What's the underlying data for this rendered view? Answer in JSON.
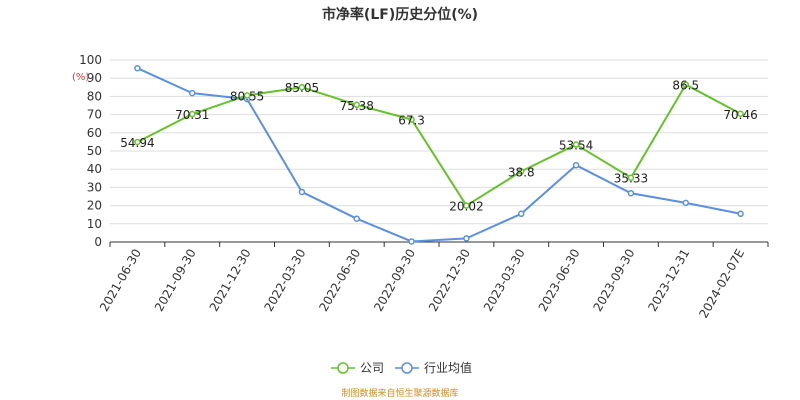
{
  "chart_data": {
    "type": "line",
    "title": "市净率(LF)历史分位(%)",
    "yunit": "(%)",
    "ylim": [
      0,
      100
    ],
    "yticks": [
      0,
      10,
      20,
      30,
      40,
      50,
      60,
      70,
      80,
      90,
      100
    ],
    "categories": [
      "2021-06-30",
      "2021-09-30",
      "2021-12-30",
      "2022-03-30",
      "2022-06-30",
      "2022-09-30",
      "2022-12-30",
      "2023-03-30",
      "2023-06-30",
      "2023-09-30",
      "2023-12-31",
      "2024-02-07E"
    ],
    "series": [
      {
        "name": "公司",
        "color": "#66c22b",
        "values": [
          54.94,
          70.31,
          80.55,
          85.05,
          75.38,
          67.3,
          20.02,
          38.8,
          53.54,
          35.33,
          86.5,
          70.46
        ],
        "labels": [
          "54.94",
          "70.31",
          "80.55",
          "85.05",
          "75.38",
          "67.3",
          "20.02",
          "38.8",
          "53.54",
          "35.33",
          "86.5",
          "70.46"
        ]
      },
      {
        "name": "行业均值",
        "color": "#5b8fe0",
        "values": [
          95.5,
          81.8,
          78.5,
          27.5,
          12.8,
          0.3,
          2.0,
          15.5,
          42.2,
          26.8,
          21.5,
          15.5
        ]
      }
    ],
    "legend_position": "bottom",
    "grid": true,
    "source": "制图数据来自恒生聚源数据库"
  }
}
